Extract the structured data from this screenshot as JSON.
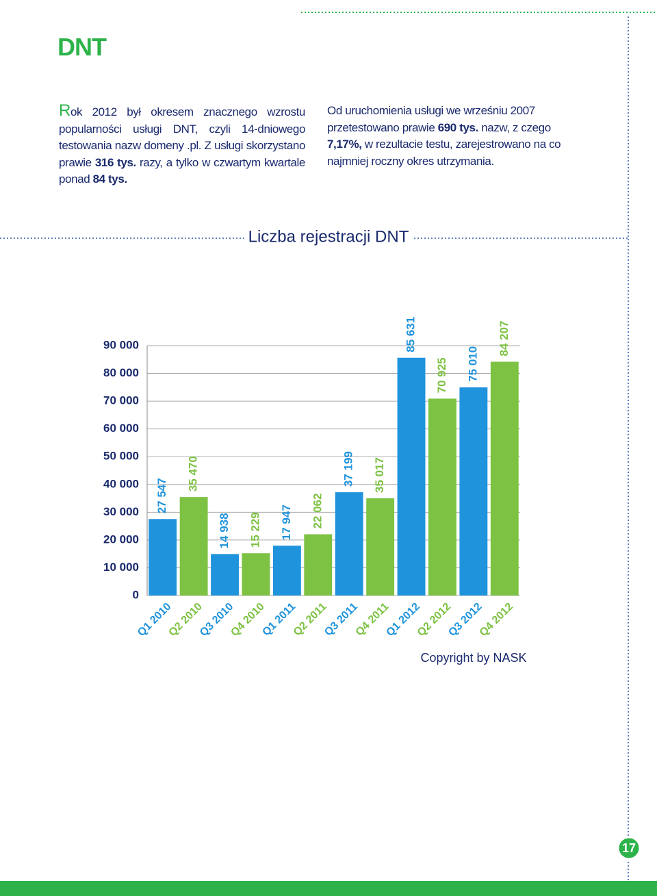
{
  "header": {
    "title": "DNT"
  },
  "paragraphs": [
    {
      "runs": [
        {
          "text": "Rok 2012 był okresem znacznego wzrostu popularności usługi DNT, czyli 14-dniowego testowania nazw domeny .pl. Z usługi skorzystano prawie "
        },
        {
          "text": "316 tys.",
          "bold": true
        },
        {
          "text": " razy, a tylko w czwartym kwartale ponad "
        },
        {
          "text": "84 tys.",
          "bold": true
        }
      ]
    },
    {
      "runs": [
        {
          "text": "Od uruchomienia usługi we wrześniu 2007 przetestowano prawie "
        },
        {
          "text": "690 tys.",
          "bold": true
        },
        {
          "text": " nazw, z czego "
        },
        {
          "text": "7,17%,",
          "bold": true
        },
        {
          "text": " w rezultacie testu, zarejestrowano na co najmniej roczny okres utrzymania."
        }
      ]
    }
  ],
  "chart_data": {
    "type": "bar",
    "title": "Liczba rejestracji DNT",
    "categories": [
      "Q1 2010",
      "Q2 2010",
      "Q3 2010",
      "Q4 2010",
      "Q1 2011",
      "Q2 2011",
      "Q3 2011",
      "Q4 2011",
      "Q1 2012",
      "Q2 2012",
      "Q3 2012",
      "Q4 2012"
    ],
    "values": [
      27547,
      35470,
      14938,
      15229,
      17947,
      22062,
      37199,
      35017,
      85631,
      70925,
      75010,
      84207
    ],
    "value_labels": [
      "27 547",
      "35 470",
      "14 938",
      "15 229",
      "17 947",
      "22 062",
      "37 199",
      "35 017",
      "85 631",
      "70 925",
      "75 010",
      "84 207"
    ],
    "colors": [
      "#1f93dc",
      "#7dc243",
      "#1f93dc",
      "#7dc243",
      "#1f93dc",
      "#7dc243",
      "#1f93dc",
      "#7dc243",
      "#1f93dc",
      "#7dc243",
      "#1f93dc",
      "#7dc243"
    ],
    "ylim": [
      0,
      90000
    ],
    "yticks": [
      {
        "value": 0,
        "label": "0"
      },
      {
        "value": 10000,
        "label": "10 000"
      },
      {
        "value": 20000,
        "label": "20 000"
      },
      {
        "value": 30000,
        "label": "30 000"
      },
      {
        "value": 40000,
        "label": "40 000"
      },
      {
        "value": 50000,
        "label": "50 000"
      },
      {
        "value": 60000,
        "label": "60 000"
      },
      {
        "value": 70000,
        "label": "70 000"
      },
      {
        "value": 80000,
        "label": "80 000"
      },
      {
        "value": 90000,
        "label": "90 000"
      }
    ],
    "grid": true
  },
  "footer": {
    "copyright": "Copyright by NASK",
    "page_number": "17"
  }
}
